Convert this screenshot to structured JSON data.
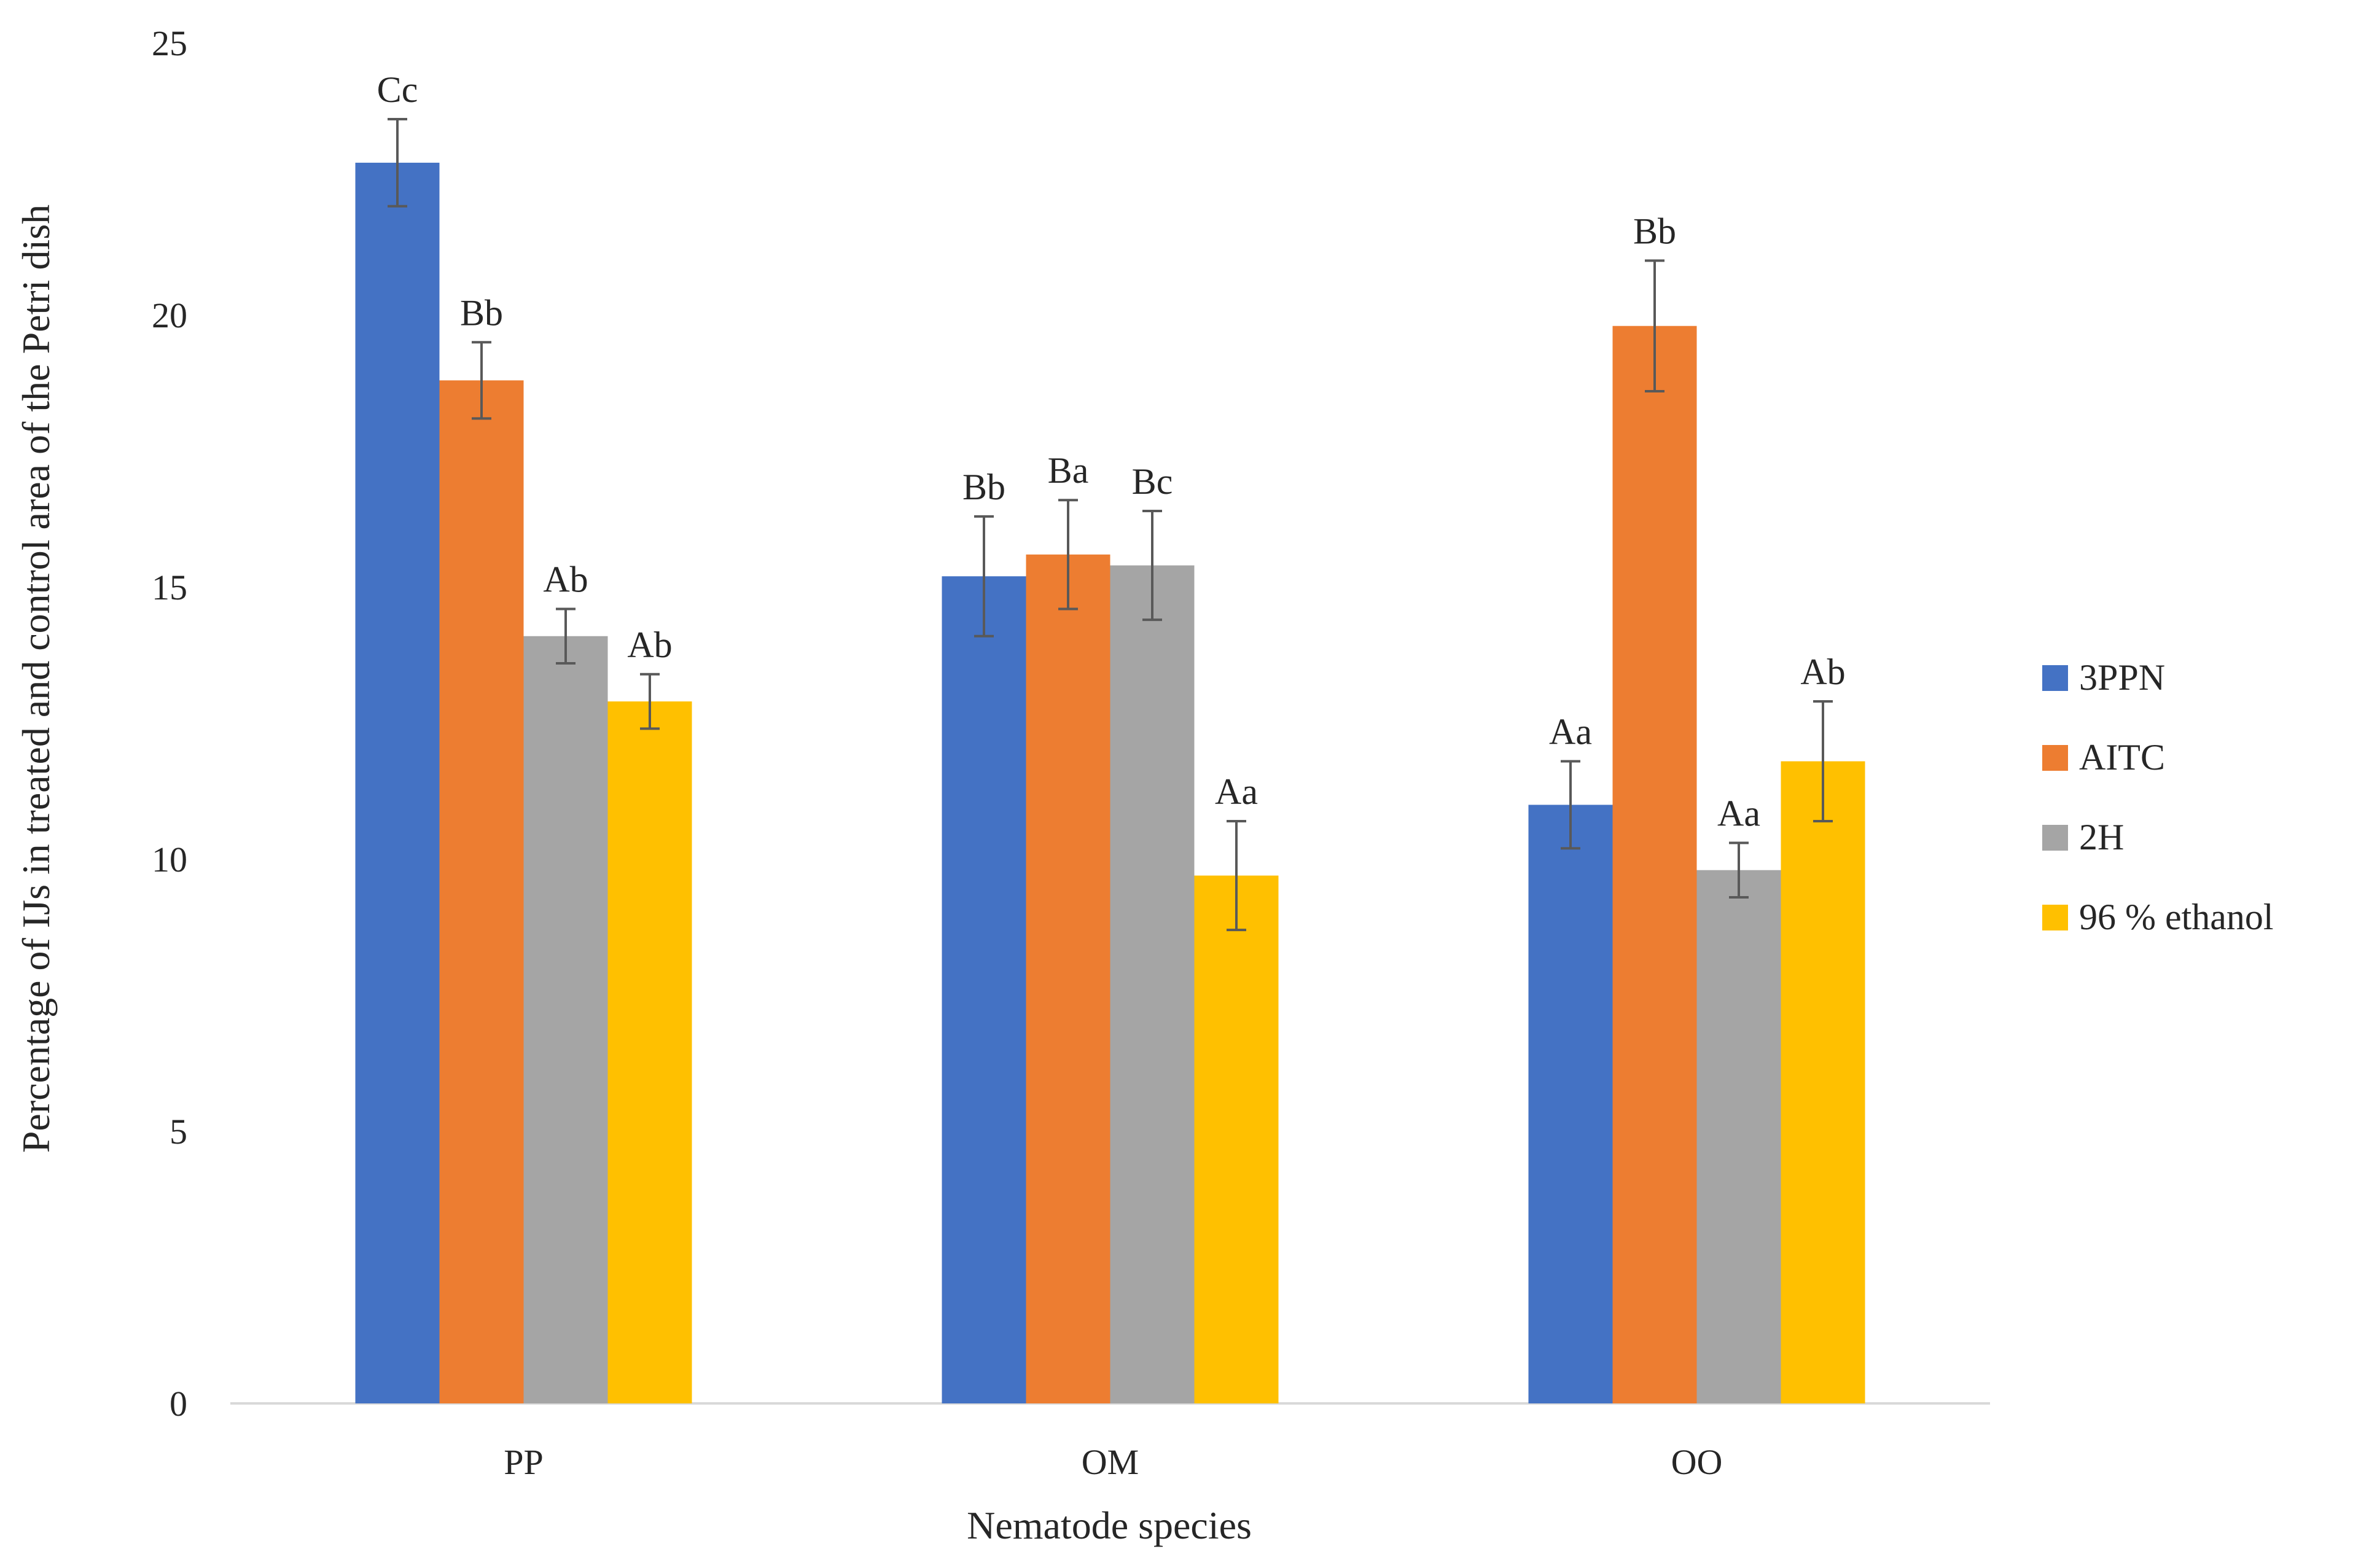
{
  "chart_data": {
    "type": "bar",
    "title": "",
    "xlabel": "Nematode species",
    "ylabel": "Percentage of IJs in treated and control area of the Petri dish",
    "categories": [
      "PP",
      "OM",
      "OO"
    ],
    "ylim": [
      0,
      25
    ],
    "yticks": [
      0,
      5,
      10,
      15,
      20,
      25
    ],
    "grid": false,
    "legend_position": "right",
    "series": [
      {
        "name": "3PPN",
        "color": "#4472C4",
        "values": [
          22.8,
          15.2,
          11.0
        ],
        "errors": [
          0.8,
          1.1,
          0.8
        ],
        "labels": [
          "Cc",
          "Bb",
          "Aa"
        ]
      },
      {
        "name": "AITC",
        "color": "#ED7D31",
        "values": [
          18.8,
          15.6,
          19.8
        ],
        "errors": [
          0.7,
          1.0,
          1.2
        ],
        "labels": [
          "Bb",
          "Ba",
          "Bb"
        ]
      },
      {
        "name": "2H",
        "color": "#A5A5A5",
        "values": [
          14.1,
          15.4,
          9.8
        ],
        "errors": [
          0.5,
          1.0,
          0.5
        ],
        "labels": [
          "Ab",
          "Bc",
          "Aa"
        ]
      },
      {
        "name": "96 % ethanol",
        "color": "#FFC000",
        "values": [
          12.9,
          9.7,
          11.8
        ],
        "errors": [
          0.5,
          1.0,
          1.1
        ],
        "labels": [
          "Ab",
          "Aa",
          "Ab"
        ]
      }
    ]
  }
}
